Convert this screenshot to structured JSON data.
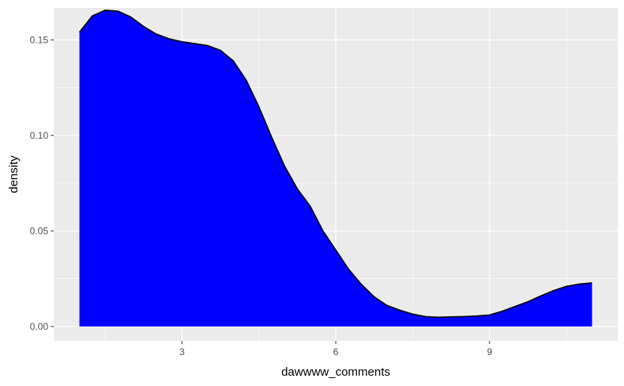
{
  "chart_data": {
    "type": "area",
    "xlabel": "dawwww_comments",
    "ylabel": "density",
    "xlim": [
      0.5,
      11.5
    ],
    "ylim": [
      -0.0075,
      0.1667
    ],
    "x_ticks": [
      3,
      6,
      9
    ],
    "x_tick_labels": [
      "3",
      "6",
      "9"
    ],
    "y_ticks": [
      0.0,
      0.05,
      0.1,
      0.15
    ],
    "y_tick_labels": [
      "0.00",
      "0.05",
      "0.10",
      "0.15"
    ],
    "grid": true,
    "fill_color": "#0000ff",
    "line_color": "#000000",
    "panel_background": "#ebebeb",
    "series": [
      {
        "x": [
          1.0,
          1.25,
          1.5,
          1.75,
          2.0,
          2.25,
          2.5,
          2.75,
          3.0,
          3.25,
          3.5,
          3.75,
          4.0,
          4.25,
          4.5,
          4.75,
          5.0,
          5.25,
          5.5,
          5.75,
          6.0,
          6.25,
          6.5,
          6.75,
          7.0,
          7.25,
          7.5,
          7.75,
          8.0,
          8.25,
          8.5,
          8.75,
          9.0,
          9.25,
          9.5,
          9.75,
          10.0,
          10.25,
          10.5,
          10.75,
          11.0
        ],
        "y": [
          0.154,
          0.1625,
          0.1655,
          0.165,
          0.162,
          0.157,
          0.153,
          0.1505,
          0.149,
          0.148,
          0.147,
          0.1445,
          0.139,
          0.129,
          0.115,
          0.099,
          0.084,
          0.072,
          0.063,
          0.05,
          0.04,
          0.03,
          0.022,
          0.0155,
          0.011,
          0.0085,
          0.0065,
          0.0052,
          0.0048,
          0.005,
          0.0052,
          0.0055,
          0.006,
          0.008,
          0.0105,
          0.013,
          0.016,
          0.0188,
          0.021,
          0.0222,
          0.0228
        ]
      }
    ]
  }
}
